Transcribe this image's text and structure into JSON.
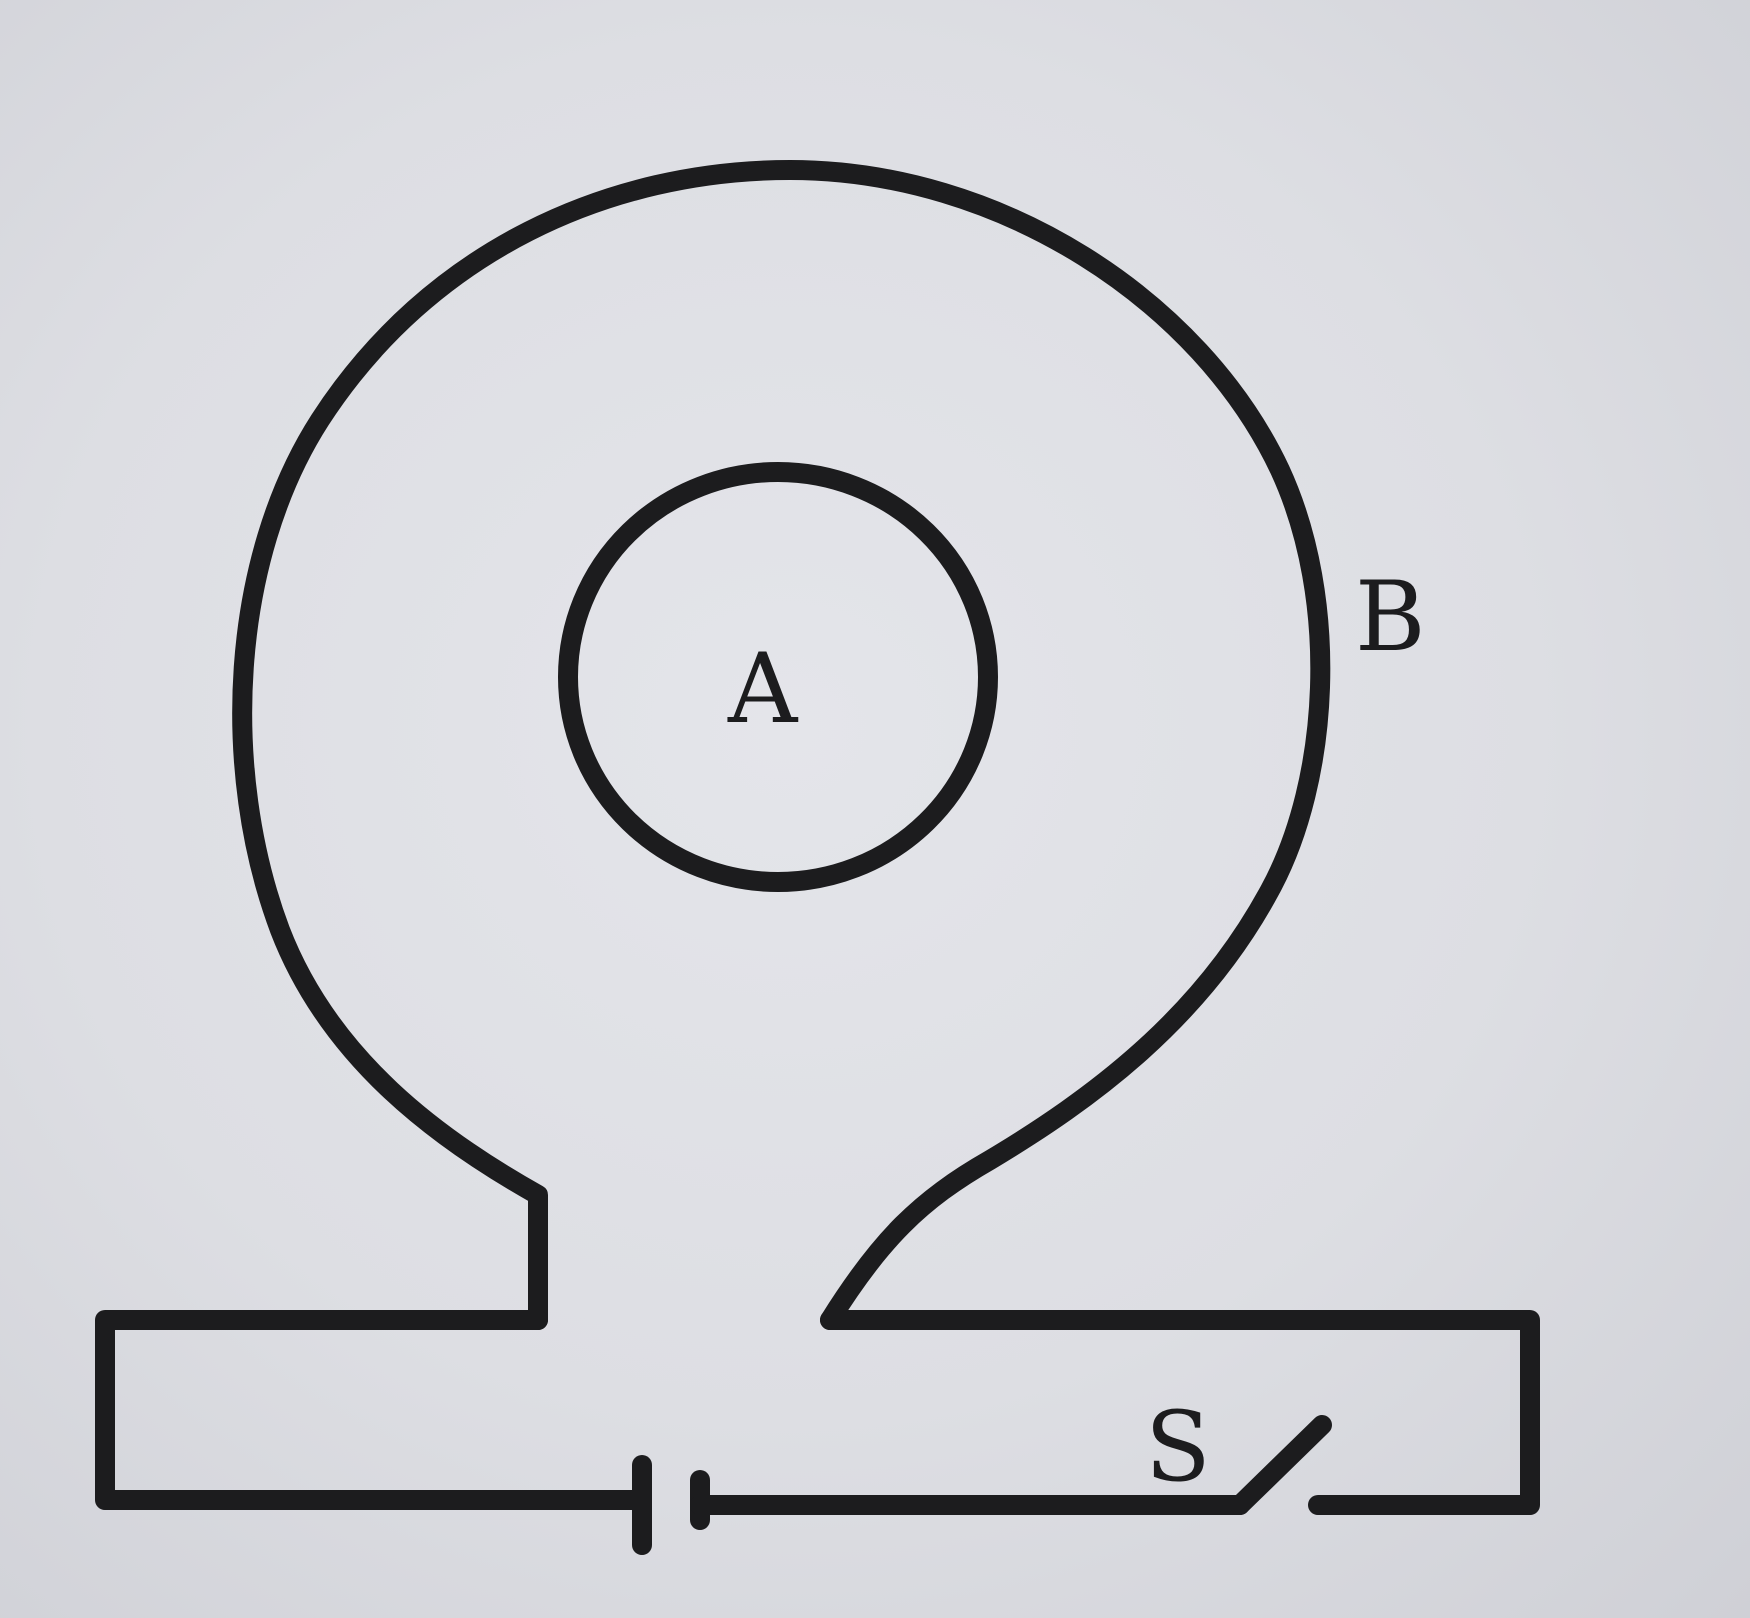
{
  "diagram": {
    "labels": {
      "inner_loop": "A",
      "outer_loop": "B",
      "switch": "S"
    },
    "colors": {
      "background": "#dcdde2",
      "line": "#1c1c1e"
    },
    "components": [
      "inner-circular-loop",
      "outer-circular-loop",
      "battery-cell",
      "switch-open"
    ]
  }
}
